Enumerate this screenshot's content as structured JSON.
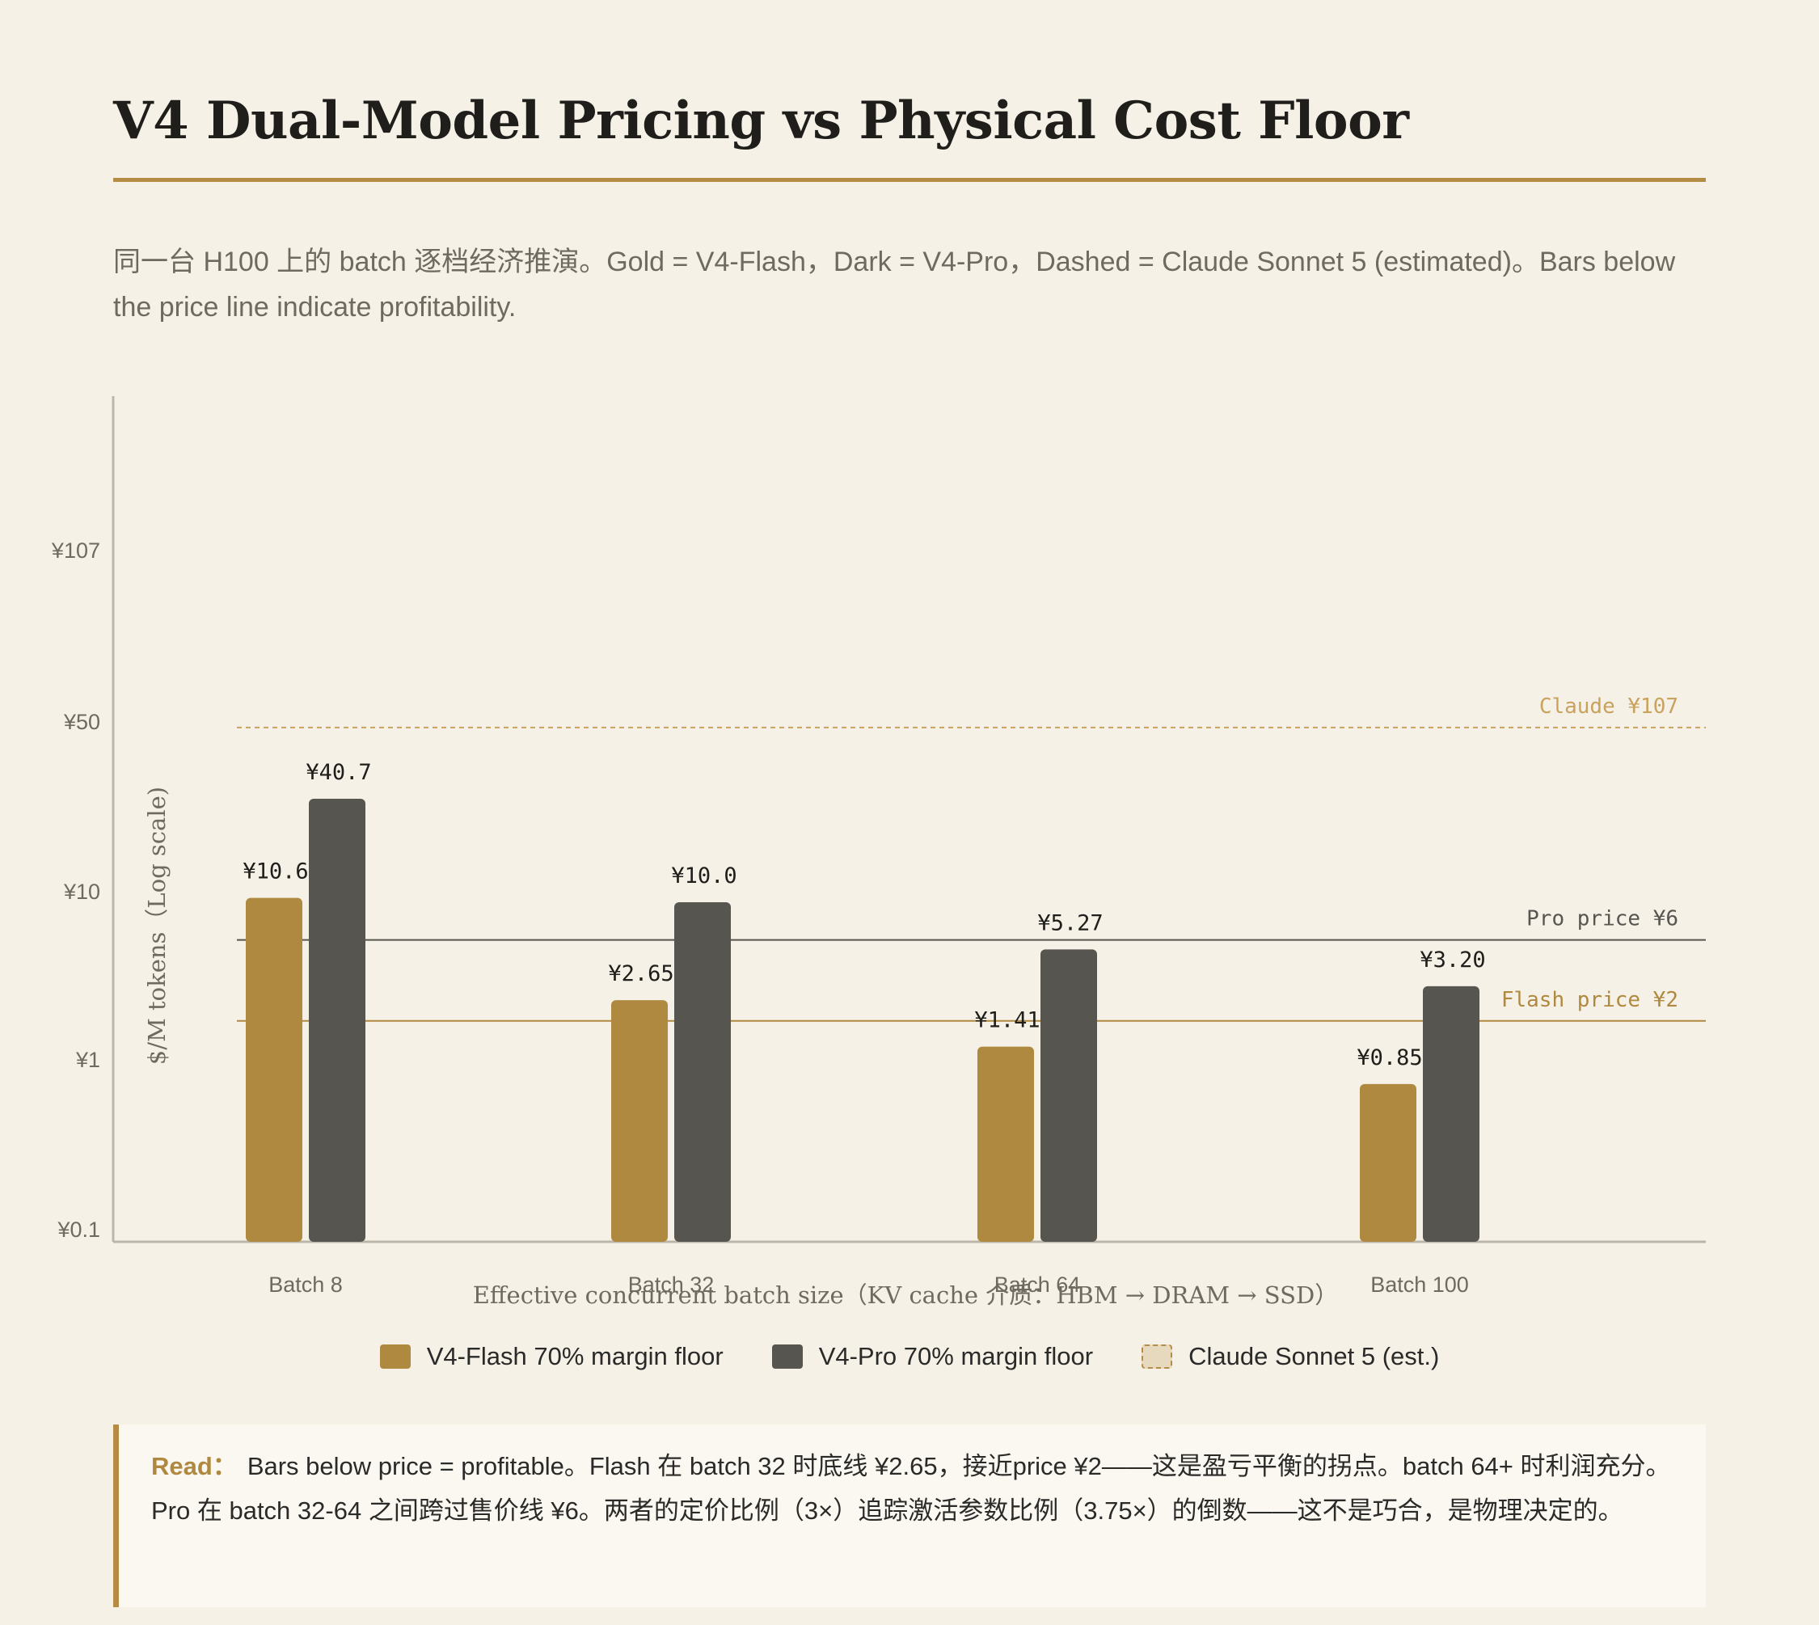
{
  "header": {
    "title": "V4 Dual-Model Pricing vs Physical Cost Floor",
    "subtitle": "同一台 H100 上的 batch 逐档经济推演。Gold = V4-Flash，Dark = V4-Pro，Dashed = Claude Sonnet 5 (estimated)。Bars below the price line indicate profitability."
  },
  "chart_data": {
    "type": "bar",
    "categories": [
      "Batch 8",
      "Batch 32",
      "Batch 64",
      "Batch 100"
    ],
    "series": [
      {
        "name": "V4-Flash 70% margin floor",
        "color": "#b08940",
        "values": [
          10.6,
          2.65,
          1.41,
          0.85
        ],
        "labels": [
          "¥10.6",
          "¥2.65",
          "¥1.41",
          "¥0.85"
        ]
      },
      {
        "name": "V4-Pro 70% margin floor",
        "color": "#575550",
        "values": [
          40.7,
          10.0,
          5.27,
          3.2
        ],
        "labels": [
          "¥40.7",
          "¥10.0",
          "¥5.27",
          "¥3.20"
        ]
      }
    ],
    "reference_lines": [
      {
        "label": "Claude ¥107",
        "value": 107,
        "style": "dashed",
        "color": "#c9a25e"
      },
      {
        "label": "Pro price ¥6",
        "value": 6,
        "style": "solid",
        "color": "#575550"
      },
      {
        "label": "Flash price ¥2",
        "value": 2,
        "style": "solid",
        "color": "#b08940"
      }
    ],
    "yticks": [
      "¥107",
      "¥50",
      "¥10",
      "¥1",
      "¥0.1"
    ],
    "ylabel": "$/M tokens（Log scale)",
    "xlabel": "Effective concurrent batch size（KV cache 介质：HBM → DRAM → SSD）",
    "scale": "log",
    "grid": false,
    "legend_position": "bottom"
  },
  "legend": {
    "flash": "V4-Flash 70% margin floor",
    "pro": "V4-Pro 70% margin floor",
    "claude": "Claude Sonnet 5 (est.)"
  },
  "note": {
    "label": "Read：",
    "text": "Bars below price = profitable。Flash 在 batch 32 时底线 ¥2.65，接近price ¥2——这是盈亏平衡的拐点。batch 64+ 时利润充分。Pro 在 batch 32-64 之间跨过售价线 ¥6。两者的定价比例（3×）追踪激活参数比例（3.75×）的倒数——这不是巧合，是物理决定的。"
  }
}
